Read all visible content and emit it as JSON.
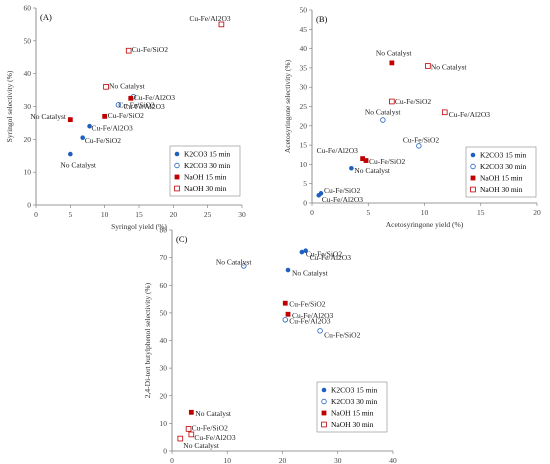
{
  "colors": {
    "k2co3": "#1f5fbf",
    "naoh": "#c00000",
    "axis": "#777777",
    "legend_border": "#888888"
  },
  "chart_data": [
    {
      "type": "scatter",
      "panel_label": "(A)",
      "xlabel": "Syringol yield (%)",
      "ylabel": "Syringol selectivity (%)",
      "xlim": [
        0,
        30
      ],
      "ylim": [
        0,
        60
      ],
      "xticks": [
        0,
        5,
        10,
        15,
        20,
        25,
        30
      ],
      "yticks": [
        0,
        10,
        20,
        30,
        40,
        50,
        60
      ],
      "legend_position": "bottom-right",
      "series": [
        {
          "name": "K2CO3 15 min",
          "marker": "circle-filled",
          "color": "#1f5fbf",
          "points": [
            {
              "x": 5.0,
              "y": 15.5,
              "label": "No Catalyst"
            },
            {
              "x": 6.8,
              "y": 20.5,
              "label": "Cu-Fe/SiO2"
            },
            {
              "x": 7.8,
              "y": 24.0,
              "label": "Cu-Fe/Al2O3"
            }
          ]
        },
        {
          "name": "K2CO3 30 min",
          "marker": "circle-open",
          "color": "#1f5fbf",
          "points": [
            {
              "x": 12.0,
              "y": 30.5,
              "label": "Cu-Fe/SiO2"
            },
            {
              "x": 14.2,
              "y": 33.0,
              "label": "Cu-Fe/Al2O3"
            }
          ]
        },
        {
          "name": "NaOH 15 min",
          "marker": "square-filled",
          "color": "#c00000",
          "points": [
            {
              "x": 5.0,
              "y": 26.0,
              "label": "No Catalyst"
            },
            {
              "x": 10.0,
              "y": 27.0,
              "label": "Cu-Fe/SiO2"
            },
            {
              "x": 13.8,
              "y": 32.5,
              "label": "Cu-Fe/Al2O3"
            }
          ]
        },
        {
          "name": "NaOH 30 min",
          "marker": "square-open",
          "color": "#c00000",
          "points": [
            {
              "x": 10.2,
              "y": 36.0,
              "label": "No Catalyst"
            },
            {
              "x": 13.5,
              "y": 47.0,
              "label": "Cu-Fe/SiO2"
            },
            {
              "x": 27.0,
              "y": 55.0,
              "label": "Cu-Fe/Al2O3"
            }
          ]
        }
      ]
    },
    {
      "type": "scatter",
      "panel_label": "(B)",
      "xlabel": "Acetosyringone yield (%)",
      "ylabel": "Acetosyringone selectivity (%)",
      "xlim": [
        0,
        20
      ],
      "ylim": [
        0,
        50
      ],
      "xticks": [
        0,
        5,
        10,
        15,
        20
      ],
      "yticks": [
        0,
        5,
        10,
        15,
        20,
        25,
        30,
        35,
        40,
        45,
        50
      ],
      "legend_position": "bottom-right",
      "series": [
        {
          "name": "K2CO3 15 min",
          "marker": "circle-filled",
          "color": "#1f5fbf",
          "points": [
            {
              "x": 0.8,
              "y": 2.5,
              "label": "Cu-Fe/SiO2"
            },
            {
              "x": 0.6,
              "y": 2.0,
              "label": "Cu-Fe/Al2O3"
            },
            {
              "x": 3.5,
              "y": 9.0,
              "label": "No Catalyst"
            }
          ]
        },
        {
          "name": "K2CO3 30 min",
          "marker": "circle-open",
          "color": "#1f5fbf",
          "points": [
            {
              "x": 6.3,
              "y": 21.5,
              "label": "No Catalyst"
            },
            {
              "x": 9.5,
              "y": 14.8,
              "label": "Cu-Fe/SiO2"
            }
          ]
        },
        {
          "name": "NaOH 15 min",
          "marker": "square-filled",
          "color": "#c00000",
          "points": [
            {
              "x": 7.1,
              "y": 36.3,
              "label": "No Catalyst"
            },
            {
              "x": 4.5,
              "y": 11.5,
              "label": "Cu-Fe/Al2O3"
            },
            {
              "x": 4.8,
              "y": 11.0,
              "label": "Cu-Fe/SiO2"
            }
          ]
        },
        {
          "name": "NaOH 30 min",
          "marker": "square-open",
          "color": "#c00000",
          "points": [
            {
              "x": 10.3,
              "y": 35.5,
              "label": "No Catalyst"
            },
            {
              "x": 7.1,
              "y": 26.3,
              "label": "Cu-Fe/SiO2"
            },
            {
              "x": 11.8,
              "y": 23.5,
              "label": "Cu-Fe/Al2O3"
            }
          ]
        }
      ]
    },
    {
      "type": "scatter",
      "panel_label": "(C)",
      "xlabel": "2,4-Di-tert butylphenol yield (%)",
      "ylabel": "2,4-Di-tert butylphenol selectivity (%)",
      "xlim": [
        0,
        40
      ],
      "ylim": [
        0,
        80
      ],
      "xticks": [
        0,
        10,
        20,
        30,
        40
      ],
      "yticks": [
        0,
        10,
        20,
        30,
        40,
        50,
        60,
        70,
        80
      ],
      "legend_position": "bottom-right",
      "series": [
        {
          "name": "K2CO3 15 min",
          "marker": "circle-filled",
          "color": "#1f5fbf",
          "points": [
            {
              "x": 23.5,
              "y": 72.0,
              "label": "Cu-Fe/SiO2"
            },
            {
              "x": 24.2,
              "y": 72.5,
              "label": "Cu-Fe/Al2O3"
            },
            {
              "x": 21.0,
              "y": 65.5,
              "label": "No Catalyst"
            }
          ]
        },
        {
          "name": "K2CO3 30 min",
          "marker": "circle-open",
          "color": "#1f5fbf",
          "points": [
            {
              "x": 13.0,
              "y": 67.0,
              "label": "No Catalyst"
            },
            {
              "x": 20.5,
              "y": 47.5,
              "label": "Cu-Fe/Al2O3"
            },
            {
              "x": 26.8,
              "y": 43.5,
              "label": "Cu-Fe/SiO2"
            }
          ]
        },
        {
          "name": "NaOH 15 min",
          "marker": "square-filled",
          "color": "#c00000",
          "points": [
            {
              "x": 20.5,
              "y": 53.5,
              "label": "Cu-Fe/SiO2"
            },
            {
              "x": 21.0,
              "y": 49.5,
              "label": "Cu-Fe/Al2O3"
            },
            {
              "x": 3.5,
              "y": 14.0,
              "label": "No Catalyst"
            }
          ]
        },
        {
          "name": "NaOH 30 min",
          "marker": "square-open",
          "color": "#c00000",
          "points": [
            {
              "x": 3.0,
              "y": 8.0,
              "label": "Cu-Fe/SiO2"
            },
            {
              "x": 3.5,
              "y": 6.0,
              "label": "Cu-Fe/Al2O3"
            },
            {
              "x": 1.5,
              "y": 4.5,
              "label": "No Catalyst"
            }
          ]
        }
      ]
    }
  ]
}
